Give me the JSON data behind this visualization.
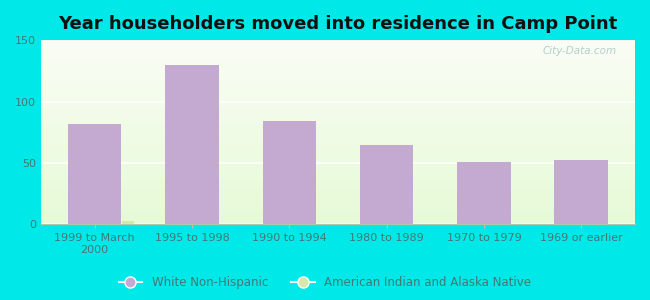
{
  "title": "Year householders moved into residence in Camp Point",
  "categories": [
    "1999 to March\n2000",
    "1995 to 1998",
    "1990 to 1994",
    "1980 to 1989",
    "1970 to 1979",
    "1969 or earlier"
  ],
  "white_non_hispanic": [
    82,
    130,
    84,
    65,
    51,
    52
  ],
  "american_indian": [
    3,
    0,
    0,
    0,
    0,
    0
  ],
  "bar_color_white": "#c4aad0",
  "bar_color_indian": "#d8e8a8",
  "background_outer": "#00e8e8",
  "ylim": [
    0,
    150
  ],
  "yticks": [
    0,
    50,
    100,
    150
  ],
  "legend_white": "White Non-Hispanic",
  "legend_indian": "American Indian and Alaska Native",
  "title_fontsize": 13,
  "tick_fontsize": 8,
  "legend_fontsize": 8.5,
  "watermark": "City-Data.com",
  "bar_width": 0.55,
  "indian_bar_width": 0.12,
  "grid_color": "#d8ead0",
  "tick_color": "#447777"
}
